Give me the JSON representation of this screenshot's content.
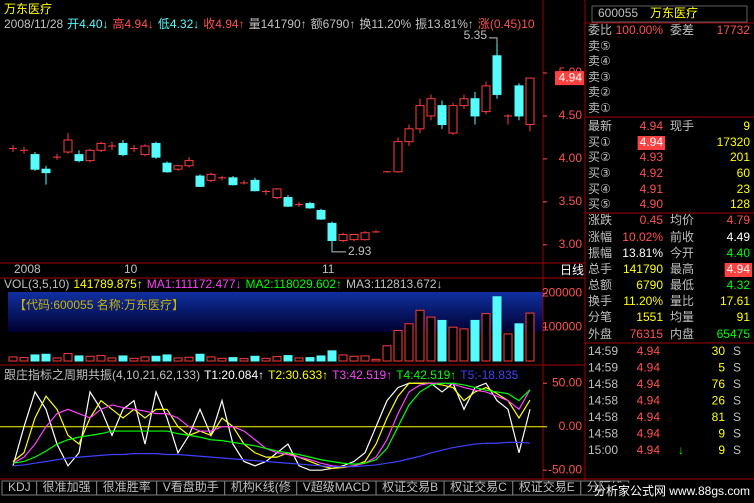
{
  "title_bar": {
    "name": "万东医疗",
    "color": "#ffff00"
  },
  "quote_line": [
    {
      "text": "2008/11/28",
      "color": "#c0c0c0"
    },
    {
      "text": "开4.40↓",
      "color": "#54fcfc"
    },
    {
      "text": "高4.94↓",
      "color": "#ff5050"
    },
    {
      "text": "低4.32↓",
      "color": "#54fcfc"
    },
    {
      "text": "收4.94↑",
      "color": "#ff5050"
    },
    {
      "text": "量141790↑",
      "color": "#c0c0c0"
    },
    {
      "text": "额6790↑",
      "color": "#c0c0c0"
    },
    {
      "text": "换11.20%",
      "color": "#c0c0c0"
    },
    {
      "text": "振13.81%↑",
      "color": "#c0c0c0"
    },
    {
      "text": "涨(0.45)10",
      "color": "#ff5050"
    }
  ],
  "price_chart": {
    "ylim": [
      2.8,
      5.5
    ],
    "yticks": [
      {
        "value": 5,
        "label": "5.00"
      },
      {
        "value": 4.5,
        "label": "4.50"
      },
      {
        "value": 4,
        "label": "4.00"
      },
      {
        "value": 3.5,
        "label": "3.50"
      },
      {
        "value": 3,
        "label": "3.00"
      }
    ],
    "last_price": {
      "value": 4.94,
      "label": "4.94"
    },
    "max_label": {
      "value": 5.35,
      "label": "5.35"
    },
    "min_label": {
      "value": 2.93,
      "label": "2.93"
    },
    "up_color": "#ff3c3c",
    "down_color": "#54fcfc",
    "axis_color": "#ff5050",
    "categories": [
      "2008",
      null,
      null,
      null,
      null,
      null,
      null,
      null,
      null,
      null,
      "10",
      null,
      null,
      null,
      null,
      null,
      null,
      null,
      null,
      null,
      null,
      null,
      null,
      null,
      null,
      null,
      null,
      null,
      "11",
      null,
      null,
      null,
      null,
      null,
      null,
      null,
      null,
      null,
      null,
      null,
      null,
      null,
      null,
      null,
      null,
      null,
      null,
      null
    ],
    "period": "日线",
    "open": [
      4.12,
      4.1,
      4.05,
      3.88,
      4.02,
      4.08,
      4.05,
      3.98,
      4.1,
      4.15,
      4.18,
      4.12,
      4.05,
      4.18,
      3.95,
      3.88,
      3.92,
      3.8,
      3.75,
      3.78,
      3.78,
      3.72,
      3.75,
      3.62,
      3.55,
      3.55,
      3.47,
      3.48,
      3.4,
      3.25,
      3.05,
      3.06,
      3.06,
      3.15,
      3.85,
      3.85,
      4.2,
      4.35,
      4.5,
      4.62,
      4.3,
      4.62,
      4.7,
      4.55,
      5.2,
      4.5,
      4.85,
      4.4
    ],
    "high": [
      4.16,
      4.14,
      4.08,
      3.92,
      4.06,
      4.3,
      4.1,
      4.12,
      4.2,
      4.2,
      4.22,
      4.16,
      4.17,
      4.2,
      3.97,
      3.93,
      4.02,
      3.82,
      3.84,
      3.8,
      3.8,
      3.75,
      3.78,
      3.64,
      3.66,
      3.58,
      3.5,
      3.5,
      3.42,
      3.27,
      3.14,
      3.13,
      3.16,
      3.17,
      3.86,
      4.25,
      4.4,
      4.7,
      4.75,
      4.68,
      4.65,
      4.75,
      4.78,
      4.9,
      5.35,
      4.52,
      4.88,
      4.94
    ],
    "low": [
      4.08,
      4.06,
      3.86,
      3.7,
      3.99,
      4.06,
      3.96,
      3.96,
      4.08,
      4.1,
      4.03,
      4.08,
      4.03,
      4.0,
      3.84,
      3.86,
      3.9,
      3.67,
      3.73,
      3.75,
      3.69,
      3.7,
      3.62,
      3.58,
      3.53,
      3.44,
      3.44,
      3.42,
      3.29,
      2.93,
      3.03,
      3.04,
      3.05,
      3.14,
      3.84,
      3.84,
      4.15,
      4.3,
      4.45,
      4.35,
      4.28,
      4.58,
      4.4,
      4.52,
      4.7,
      4.4,
      4.45,
      4.32
    ],
    "close": [
      4.12,
      4.1,
      3.88,
      3.84,
      4.02,
      4.22,
      3.98,
      4.1,
      4.18,
      4.15,
      4.05,
      4.12,
      4.15,
      4.02,
      3.85,
      3.92,
      3.98,
      3.68,
      3.82,
      3.78,
      3.7,
      3.72,
      3.63,
      3.62,
      3.65,
      3.45,
      3.47,
      3.43,
      3.3,
      3.05,
      3.12,
      3.12,
      3.14,
      3.15,
      3.85,
      4.2,
      4.35,
      4.62,
      4.7,
      4.4,
      4.62,
      4.7,
      4.5,
      4.85,
      4.75,
      4.5,
      4.5,
      4.94
    ]
  },
  "volume_chart": {
    "label_items": [
      {
        "text": "VOL(3,5,10)",
        "color": "#c0c0c0"
      },
      {
        "text": "141789.875↑",
        "color": "#ffff00"
      },
      {
        "text": "MA1:111172.477↓",
        "color": "#ff40ff"
      },
      {
        "text": "MA2:118029.602↑",
        "color": "#00ff00"
      },
      {
        "text": "MA3:112813.672↓",
        "color": "#c0c0c0"
      }
    ],
    "info_box": "【代码:600055 名称:万东医疗】",
    "ylim": [
      0,
      210000
    ],
    "yticks": [
      200000,
      100000
    ],
    "values": [
      12000,
      10000,
      18000,
      20000,
      9000,
      22000,
      15000,
      14000,
      16000,
      9000,
      15000,
      8000,
      12000,
      14000,
      18000,
      9000,
      11000,
      20000,
      12000,
      8000,
      10000,
      7000,
      14000,
      8000,
      13000,
      16000,
      9000,
      10000,
      15000,
      30000,
      18000,
      14000,
      15000,
      5000,
      45000,
      90000,
      110000,
      150000,
      130000,
      120000,
      100000,
      95000,
      120000,
      140000,
      190000,
      80000,
      110000,
      141790
    ]
  },
  "indicator": {
    "label_items": [
      {
        "text": "跟庄指标之周期共振(4,10,21,62,133)",
        "color": "#c0c0c0"
      },
      {
        "text": "T1:20.084↑",
        "color": "#ffffff"
      },
      {
        "text": "T2:30.633↑",
        "color": "#ffff00"
      },
      {
        "text": "T3:42.519↑",
        "color": "#ff40ff"
      },
      {
        "text": "T4:42.519↑",
        "color": "#00ff00"
      },
      {
        "text": "T5:-18.835",
        "color": "#4040ff"
      }
    ],
    "ylim": [
      -59,
      56
    ],
    "yticks": [
      {
        "value": 50,
        "label": "50.00"
      },
      {
        "value": 0,
        "label": "0.00"
      },
      {
        "value": -50,
        "label": "-50.00"
      }
    ],
    "series": [
      {
        "name": "T1",
        "color": "#ffffff",
        "values": [
          -45,
          0,
          40,
          20,
          -20,
          -45,
          -30,
          40,
          20,
          -10,
          20,
          30,
          -20,
          40,
          10,
          -30,
          -10,
          20,
          -10,
          30,
          -20,
          -40,
          -45,
          -40,
          -30,
          -20,
          -45,
          -50,
          -50,
          -48,
          -45,
          -40,
          -30,
          0,
          30,
          45,
          50,
          50,
          50,
          40,
          50,
          20,
          45,
          50,
          30,
          20,
          -30,
          20.084
        ]
      },
      {
        "name": "T2",
        "color": "#ffff00",
        "values": [
          -40,
          -30,
          10,
          35,
          20,
          -10,
          -20,
          10,
          30,
          20,
          10,
          20,
          10,
          20,
          20,
          0,
          -10,
          -5,
          -10,
          10,
          0,
          -20,
          -30,
          -35,
          -35,
          -30,
          -35,
          -40,
          -45,
          -48,
          -47,
          -45,
          -40,
          -20,
          10,
          35,
          50,
          50,
          50,
          48,
          45,
          30,
          40,
          45,
          38,
          30,
          10,
          30.633
        ]
      },
      {
        "name": "T3",
        "color": "#ff40ff",
        "values": [
          -42,
          -35,
          -20,
          0,
          15,
          20,
          15,
          10,
          20,
          25,
          22,
          20,
          18,
          15,
          15,
          10,
          0,
          -5,
          -5,
          0,
          0,
          -5,
          -15,
          -25,
          -30,
          -32,
          -35,
          -38,
          -42,
          -45,
          -46,
          -45,
          -42,
          -35,
          -15,
          15,
          40,
          48,
          50,
          50,
          49,
          45,
          42,
          40,
          35,
          30,
          20,
          42.519
        ]
      },
      {
        "name": "T4",
        "color": "#00ff00",
        "values": [
          -42,
          -40,
          -35,
          -28,
          -20,
          -15,
          -12,
          -10,
          -8,
          -5,
          -5,
          -5,
          -5,
          -5,
          -5,
          -8,
          -10,
          -12,
          -15,
          -16,
          -18,
          -20,
          -22,
          -25,
          -28,
          -30,
          -32,
          -35,
          -38,
          -40,
          -42,
          -43,
          -42,
          -38,
          -25,
          0,
          25,
          40,
          48,
          50,
          50,
          48,
          45,
          42,
          40,
          38,
          30,
          42.519
        ]
      },
      {
        "name": "T5",
        "color": "#4040ff",
        "values": [
          -45,
          -44,
          -42,
          -40,
          -38,
          -36,
          -35,
          -34,
          -33,
          -32,
          -32,
          -31,
          -31,
          -31,
          -32,
          -32,
          -33,
          -34,
          -35,
          -36,
          -37,
          -38,
          -39,
          -40,
          -41,
          -42,
          -43,
          -44,
          -45,
          -46,
          -46,
          -46,
          -45,
          -44,
          -42,
          -40,
          -37,
          -34,
          -30,
          -27,
          -24,
          -22,
          -20,
          -19,
          -19,
          -18,
          -18,
          -18.835
        ]
      }
    ]
  },
  "tabs": [
    "KDJ",
    "很准加强",
    "很准胜率",
    "V看盘助手",
    "机构K线(修",
    "V超级MACD",
    "权证交易B",
    "权证交易C",
    "权证交易E",
    "分隔线"
  ],
  "watermark": "分析家公式网 www.88gs.com",
  "quote_panel": {
    "code": "600055",
    "name": "万东医疗",
    "rows": [
      [
        {
          "text": "委比",
          "color": "#c0c0c0"
        },
        {
          "text": "100.00%",
          "color": "#ff5050"
        },
        {
          "text": "委差",
          "color": "#c0c0c0"
        },
        {
          "text": "17732",
          "color": "#ff5050"
        }
      ],
      [
        {
          "text": "卖⑤",
          "color": "#c0c0c0"
        }
      ],
      [
        {
          "text": "卖④",
          "color": "#c0c0c0"
        }
      ],
      [
        {
          "text": "卖③",
          "color": "#c0c0c0"
        }
      ],
      [
        {
          "text": "卖②",
          "color": "#c0c0c0"
        }
      ],
      [
        {
          "text": "卖①",
          "color": "#c0c0c0"
        }
      ],
      [
        {
          "text": "最新",
          "color": "#c0c0c0"
        },
        {
          "text": "4.94",
          "color": "#ff5050"
        },
        {
          "text": "现手",
          "color": "#c0c0c0"
        },
        {
          "text": "9",
          "color": "#ffff00"
        }
      ],
      [
        {
          "text": "买①",
          "color": "#c0c0c0"
        },
        {
          "text": "4.94",
          "color": "#ffffff",
          "bg": "#ff4040"
        },
        {
          "text": "17320",
          "color": "#ffff00"
        }
      ],
      [
        {
          "text": "买②",
          "color": "#c0c0c0"
        },
        {
          "text": "4.93",
          "color": "#ff5050"
        },
        {
          "text": "201",
          "color": "#ffff00"
        }
      ],
      [
        {
          "text": "买③",
          "color": "#c0c0c0"
        },
        {
          "text": "4.92",
          "color": "#ff5050"
        },
        {
          "text": "60",
          "color": "#ffff00"
        }
      ],
      [
        {
          "text": "买④",
          "color": "#c0c0c0"
        },
        {
          "text": "4.91",
          "color": "#ff5050"
        },
        {
          "text": "23",
          "color": "#ffff00"
        }
      ],
      [
        {
          "text": "买⑤",
          "color": "#c0c0c0"
        },
        {
          "text": "4.90",
          "color": "#ff5050"
        },
        {
          "text": "128",
          "color": "#ffff00"
        }
      ],
      [
        {
          "text": "涨跌",
          "color": "#c0c0c0"
        },
        {
          "text": "0.45",
          "color": "#ff5050"
        },
        {
          "text": "均价",
          "color": "#c0c0c0"
        },
        {
          "text": "4.79",
          "color": "#ff5050"
        }
      ],
      [
        {
          "text": "涨幅",
          "color": "#c0c0c0"
        },
        {
          "text": "10.02%",
          "color": "#ff5050"
        },
        {
          "text": "前收",
          "color": "#c0c0c0"
        },
        {
          "text": "4.49",
          "color": "#ffffff"
        }
      ],
      [
        {
          "text": "振幅",
          "color": "#c0c0c0"
        },
        {
          "text": "13.81%",
          "color": "#ffffff"
        },
        {
          "text": "今开",
          "color": "#c0c0c0"
        },
        {
          "text": "4.40",
          "color": "#00ff00"
        }
      ],
      [
        {
          "text": "总手",
          "color": "#c0c0c0"
        },
        {
          "text": "141790",
          "color": "#ffff00"
        },
        {
          "text": "最高",
          "color": "#c0c0c0"
        },
        {
          "text": "4.94",
          "color": "#ffffff",
          "bg": "#ff4040"
        }
      ],
      [
        {
          "text": "总额",
          "color": "#c0c0c0"
        },
        {
          "text": "6790",
          "color": "#ffff00"
        },
        {
          "text": "最低",
          "color": "#c0c0c0"
        },
        {
          "text": "4.32",
          "color": "#00ff00"
        }
      ],
      [
        {
          "text": "换手",
          "color": "#c0c0c0"
        },
        {
          "text": "11.20%",
          "color": "#ffff00"
        },
        {
          "text": "量比",
          "color": "#c0c0c0"
        },
        {
          "text": "17.61",
          "color": "#ffff00"
        }
      ],
      [
        {
          "text": "分笔",
          "color": "#c0c0c0"
        },
        {
          "text": "1551",
          "color": "#ffff00"
        },
        {
          "text": "均量",
          "color": "#c0c0c0"
        },
        {
          "text": "91",
          "color": "#ffff00"
        }
      ],
      [
        {
          "text": "外盘",
          "color": "#c0c0c0"
        },
        {
          "text": "76315",
          "color": "#ff5050"
        },
        {
          "text": "内盘",
          "color": "#c0c0c0"
        },
        {
          "text": "65475",
          "color": "#00ff00"
        }
      ]
    ],
    "ticks": [
      {
        "time": "14:59",
        "price": "4.94",
        "vol": "30",
        "side": "S"
      },
      {
        "time": "14:59",
        "price": "4.94",
        "vol": "5",
        "side": "S"
      },
      {
        "time": "14:58",
        "price": "4.94",
        "vol": "76",
        "side": "S"
      },
      {
        "time": "14:58",
        "price": "4.94",
        "vol": "26",
        "side": "S"
      },
      {
        "time": "14:58",
        "price": "4.94",
        "vol": "81",
        "side": "S"
      },
      {
        "time": "14:58",
        "price": "4.94",
        "vol": "9",
        "side": "S"
      },
      {
        "time": "15:00",
        "price": "4.94",
        "arrow": "↓",
        "vol": "9",
        "side": "S"
      }
    ]
  }
}
